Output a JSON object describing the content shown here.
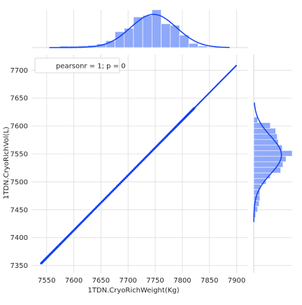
{
  "colors": {
    "accent": "#0f3ff5",
    "bars": "#8fa9f9",
    "grid": "#dcdcdc",
    "axis_text": "#262626",
    "background": "#ffffff"
  },
  "chart_data": {
    "type": "scatter",
    "title": "",
    "xlabel": "1TDN.CryoRichWeight(Kg)",
    "ylabel": "1TDN.CryoRichVol(L)",
    "xlim": [
      7522,
      7920
    ],
    "ylim": [
      7337,
      7728
    ],
    "xticks": [
      7550,
      7600,
      7650,
      7700,
      7750,
      7800,
      7850,
      7900
    ],
    "yticks": [
      7350,
      7400,
      7450,
      7500,
      7550,
      7600,
      7650,
      7700
    ],
    "grid": true,
    "legend": {
      "position": "top-left",
      "text": "pearsonr = 1; p = 0"
    },
    "regression_line": {
      "x": [
        7540,
        7900
      ],
      "y": [
        7354,
        7709
      ]
    },
    "scatter": {
      "x_start": 7540,
      "x_end": 7822,
      "count": 150,
      "slope": 0.986,
      "intercept_at": [
        7540,
        7354
      ]
    },
    "marginal_x": {
      "type": "histogram+kde",
      "bins": [
        {
          "x0": 7574,
          "x1": 7591,
          "h": 0.04
        },
        {
          "x0": 7591,
          "x1": 7608,
          "h": 0.04
        },
        {
          "x0": 7608,
          "x1": 7625,
          "h": 0.05
        },
        {
          "x0": 7625,
          "x1": 7642,
          "h": 0.06
        },
        {
          "x0": 7642,
          "x1": 7659,
          "h": 0.1
        },
        {
          "x0": 7659,
          "x1": 7676,
          "h": 0.18
        },
        {
          "x0": 7676,
          "x1": 7693,
          "h": 0.42
        },
        {
          "x0": 7693,
          "x1": 7710,
          "h": 0.51
        },
        {
          "x0": 7710,
          "x1": 7727,
          "h": 0.81
        },
        {
          "x0": 7727,
          "x1": 7744,
          "h": 0.85
        },
        {
          "x0": 7744,
          "x1": 7761,
          "h": 1.0
        },
        {
          "x0": 7761,
          "x1": 7778,
          "h": 0.63
        },
        {
          "x0": 7778,
          "x1": 7795,
          "h": 0.59
        },
        {
          "x0": 7795,
          "x1": 7812,
          "h": 0.33
        },
        {
          "x0": 7812,
          "x1": 7829,
          "h": 0.11
        },
        {
          "x0": 7829,
          "x1": 7846,
          "h": 0.04
        }
      ],
      "kde": {
        "mean": 7747,
        "sd": 42,
        "peak": 0.88,
        "range": [
          7555,
          7887
        ]
      }
    },
    "marginal_y": {
      "type": "histogram+kde",
      "bins": [
        {
          "y0": 7616,
          "y1": 7606,
          "w": 0.1
        },
        {
          "y0": 7606,
          "y1": 7596,
          "w": 0.43
        },
        {
          "y0": 7596,
          "y1": 7586,
          "w": 0.57
        },
        {
          "y0": 7586,
          "y1": 7576,
          "w": 0.61
        },
        {
          "y0": 7576,
          "y1": 7566,
          "w": 0.64
        },
        {
          "y0": 7566,
          "y1": 7556,
          "w": 0.74
        },
        {
          "y0": 7556,
          "y1": 7546,
          "w": 1.0
        },
        {
          "y0": 7546,
          "y1": 7536,
          "w": 0.84
        },
        {
          "y0": 7536,
          "y1": 7526,
          "w": 0.76
        },
        {
          "y0": 7526,
          "y1": 7516,
          "w": 0.7
        },
        {
          "y0": 7516,
          "y1": 7506,
          "w": 0.43
        },
        {
          "y0": 7506,
          "y1": 7496,
          "w": 0.32
        },
        {
          "y0": 7496,
          "y1": 7486,
          "w": 0.18
        },
        {
          "y0": 7486,
          "y1": 7476,
          "w": 0.16
        },
        {
          "y0": 7476,
          "y1": 7466,
          "w": 0.16
        },
        {
          "y0": 7466,
          "y1": 7456,
          "w": 0.14
        },
        {
          "y0": 7456,
          "y1": 7446,
          "w": 0.1
        },
        {
          "y0": 7446,
          "y1": 7436,
          "w": 0.05
        }
      ],
      "kde": {
        "mean": 7548,
        "sd": 34,
        "peak": 0.72,
        "range": [
          7428,
          7642
        ]
      }
    }
  }
}
